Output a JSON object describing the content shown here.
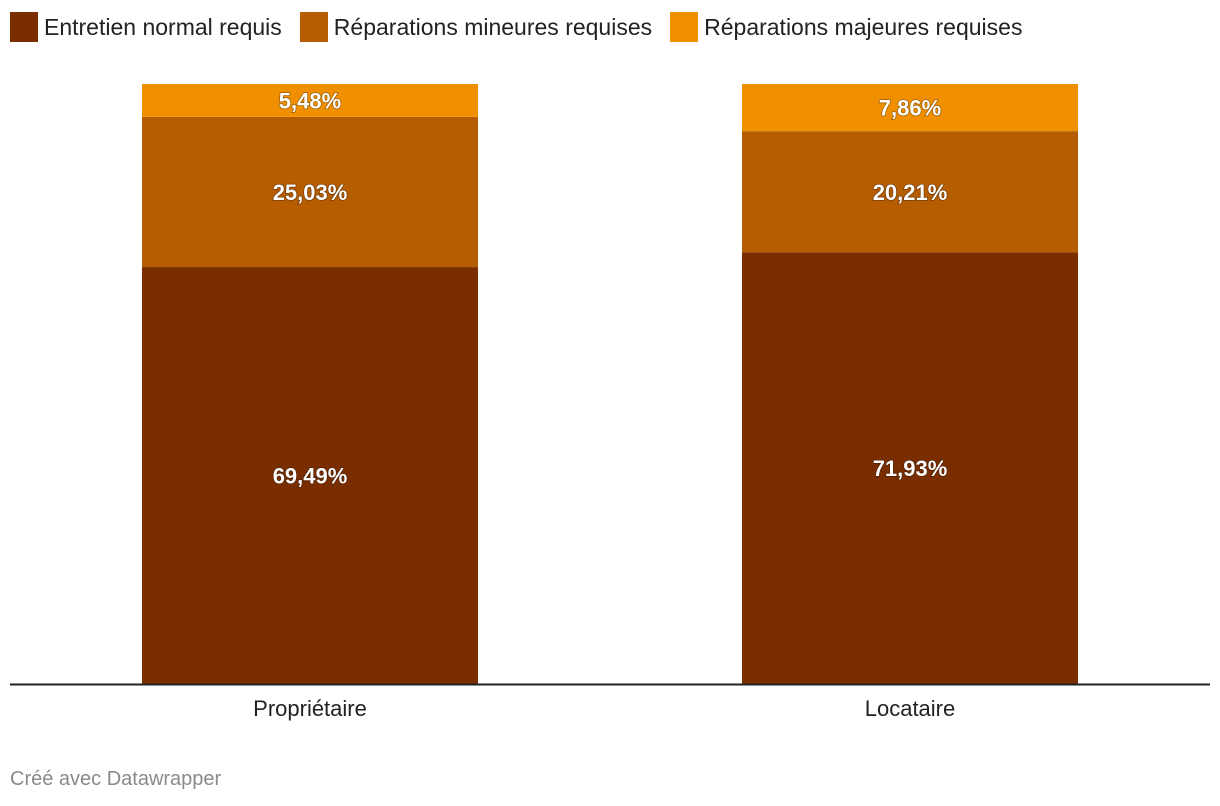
{
  "chart_data": {
    "type": "bar",
    "stacked": true,
    "categories": [
      "Propriétaire",
      "Locataire"
    ],
    "series": [
      {
        "name": "Entretien normal requis",
        "values": [
          69.49,
          71.93
        ],
        "labels": [
          "69,49%",
          "71,93%"
        ],
        "color": "#7a2e00"
      },
      {
        "name": "Réparations mineures requises",
        "values": [
          25.03,
          20.21
        ],
        "labels": [
          "25,03%",
          "20,21%"
        ],
        "color": "#b55d00"
      },
      {
        "name": "Réparations majeures requises",
        "values": [
          5.48,
          7.86
        ],
        "labels": [
          "5,48%",
          "7,86%"
        ],
        "color": "#f09000"
      }
    ],
    "ylim": [
      0,
      100
    ],
    "grid": false,
    "legend": "top-left",
    "xlabel": "",
    "ylabel": ""
  },
  "footer": {
    "credit": "Créé avec Datawrapper"
  }
}
